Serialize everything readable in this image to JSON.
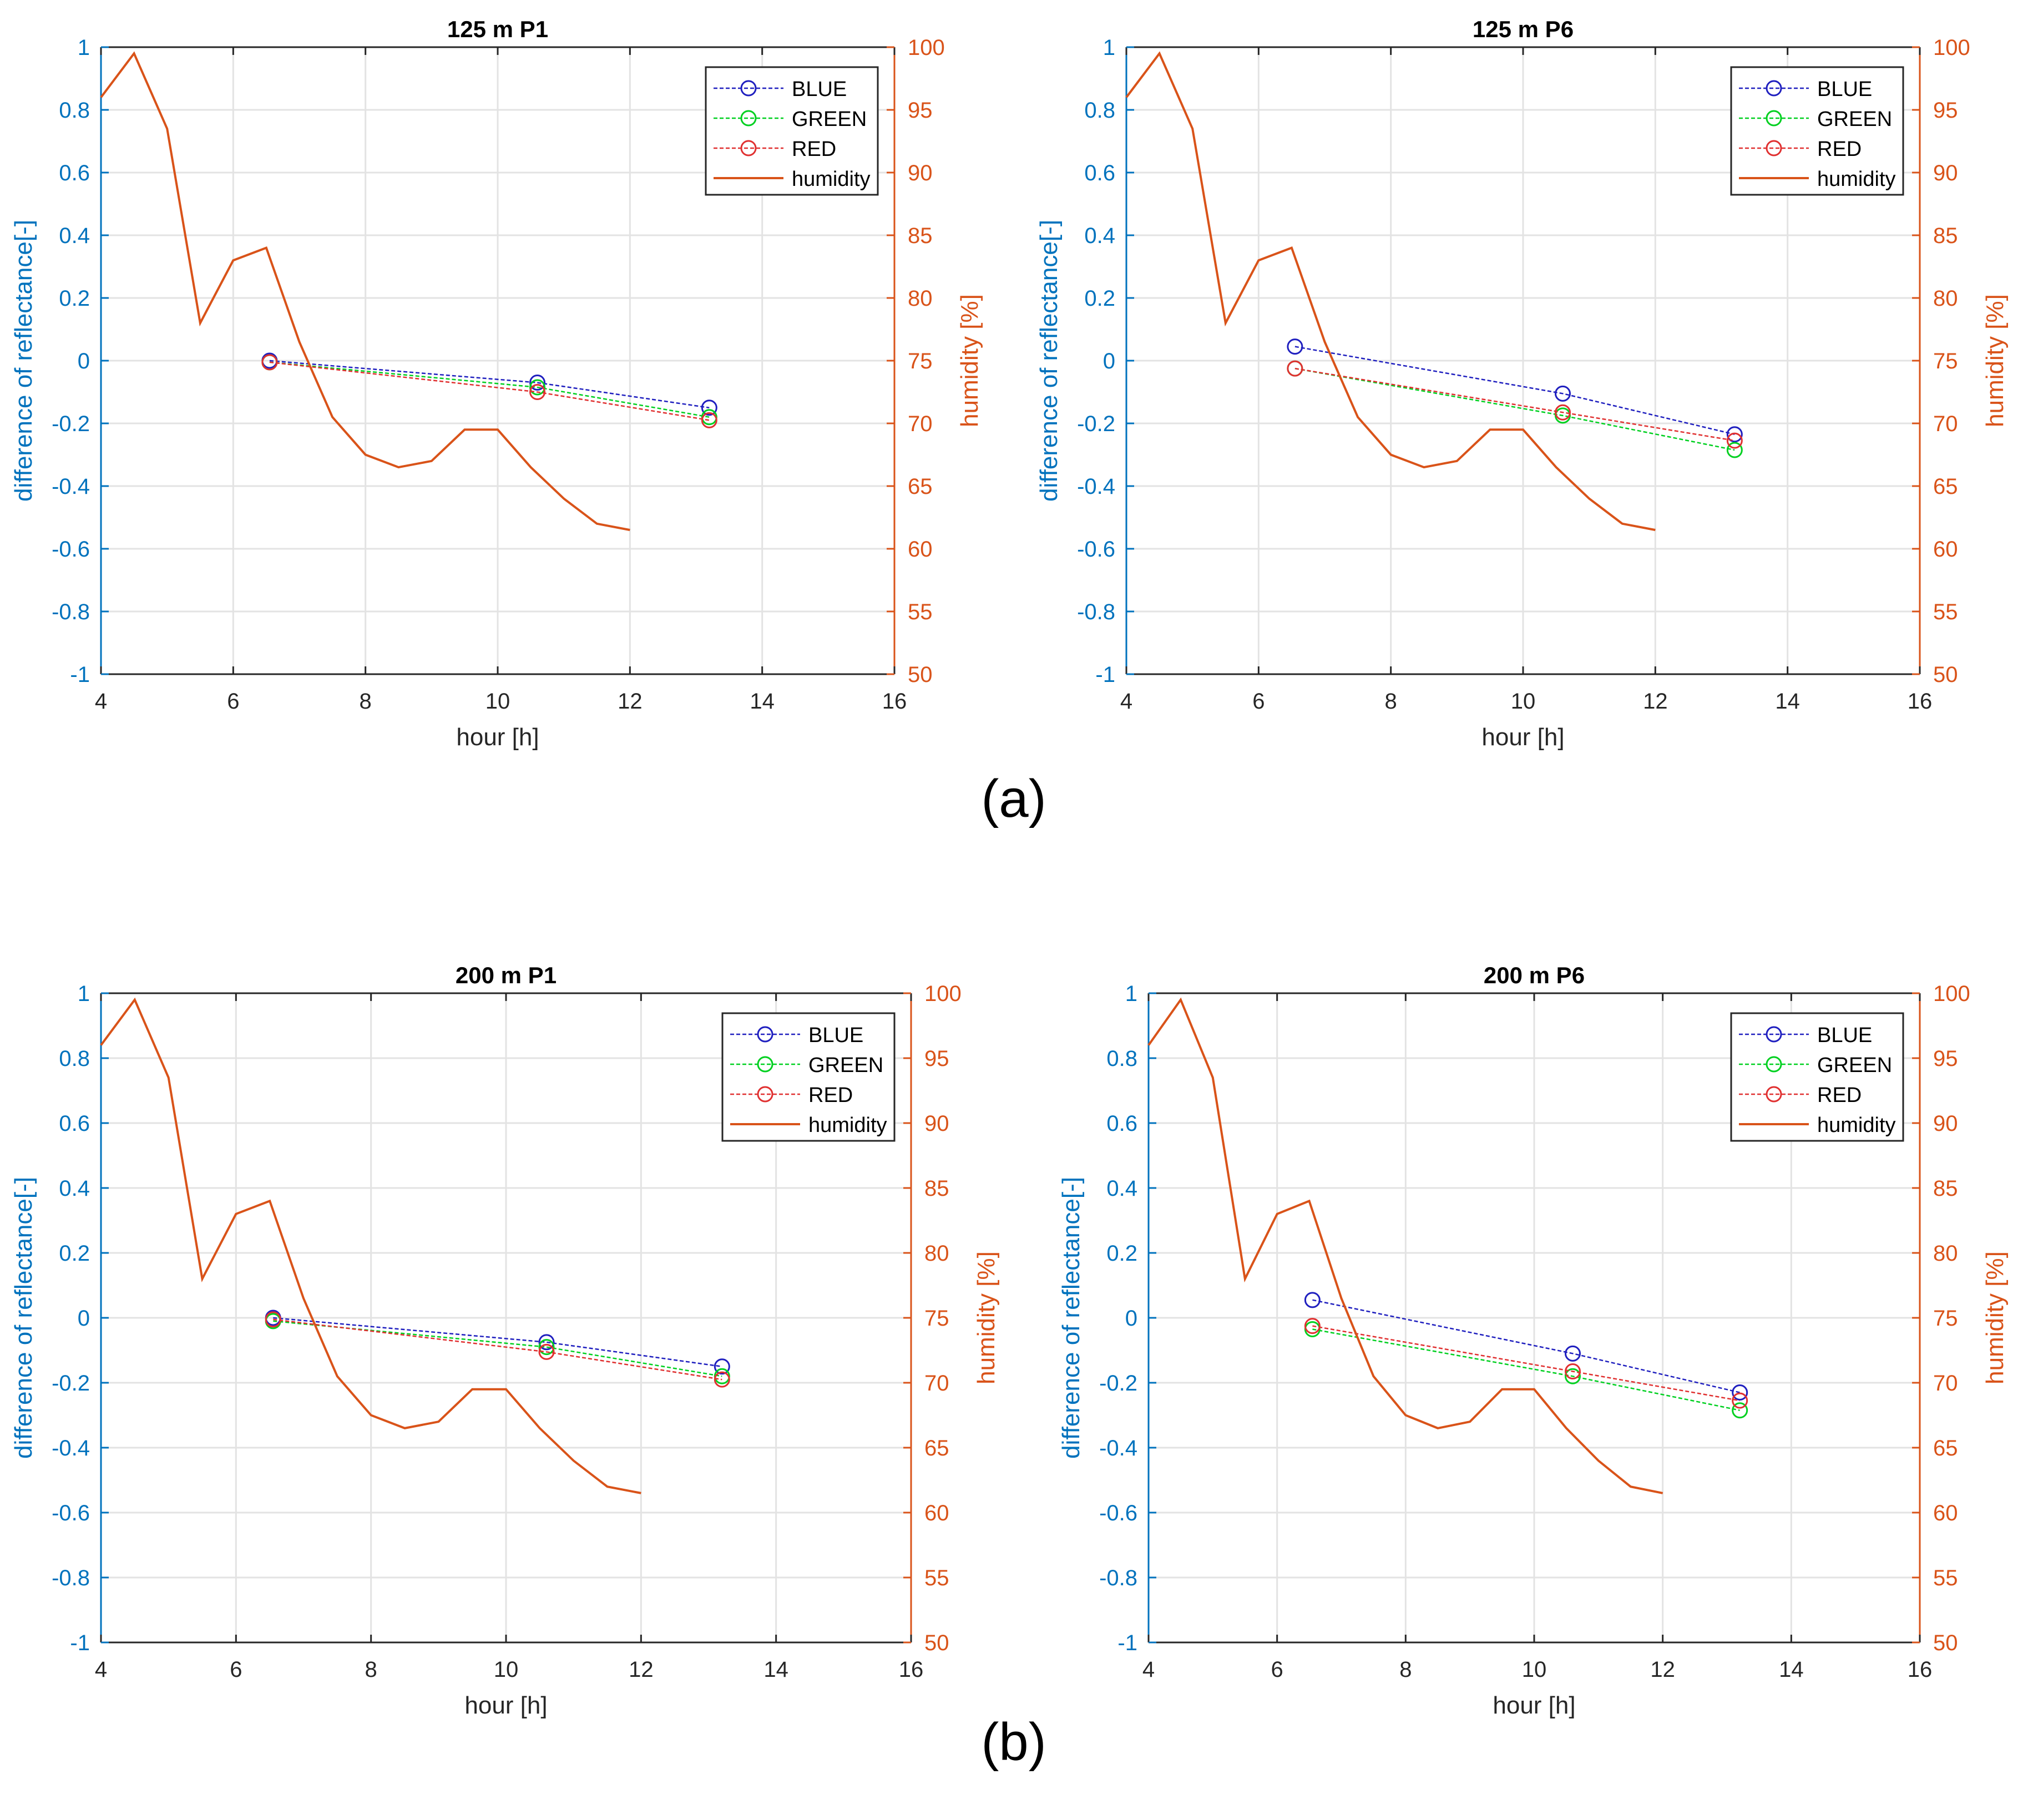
{
  "figure": {
    "panel_labels": [
      "(a)",
      "(b)"
    ]
  },
  "colors": {
    "left_axis": "#0072BD",
    "right_axis": "#D95319",
    "blue": "#1f1fbf",
    "green": "#00d020",
    "red": "#e03030",
    "humidity": "#D95319",
    "grid": "#e3e3e3",
    "axes": "#262626"
  },
  "chart_data": [
    {
      "type": "line",
      "title": "125 m  P1",
      "xlabel": "hour [h]",
      "ylabel": "difference of reflectance[-]",
      "y2label": "humidity [%]",
      "xlim": [
        4,
        16
      ],
      "ylim": [
        -1,
        1
      ],
      "y2lim": [
        50,
        100
      ],
      "xticks": [
        4,
        6,
        8,
        10,
        12,
        14,
        16
      ],
      "yticks": [
        -1,
        -0.8,
        -0.6,
        -0.4,
        -0.2,
        0,
        0.2,
        0.4,
        0.6,
        0.8,
        1
      ],
      "y2ticks": [
        50,
        55,
        60,
        65,
        70,
        75,
        80,
        85,
        90,
        95,
        100
      ],
      "grid": true,
      "legend": "top-right",
      "series": [
        {
          "name": "BLUE",
          "x": [
            6.55,
            10.6,
            13.2
          ],
          "y": [
            0.0,
            -0.07,
            -0.15
          ]
        },
        {
          "name": "GREEN",
          "x": [
            6.55,
            10.6,
            13.2
          ],
          "y": [
            -0.005,
            -0.085,
            -0.18
          ]
        },
        {
          "name": "RED",
          "x": [
            6.55,
            10.6,
            13.2
          ],
          "y": [
            -0.005,
            -0.1,
            -0.19
          ]
        },
        {
          "name": "humidity",
          "axis": "right",
          "x": [
            4,
            4.5,
            5,
            5.5,
            6,
            6.5,
            7,
            7.5,
            8,
            8.5,
            9,
            9.5,
            10,
            10.5,
            11,
            11.5,
            12
          ],
          "y": [
            96,
            99.5,
            93.5,
            78,
            83,
            84,
            76.5,
            70.5,
            67.5,
            66.5,
            67,
            69.5,
            69.5,
            66.5,
            64,
            62,
            61.5
          ]
        }
      ]
    },
    {
      "type": "line",
      "title": "125 m  P6",
      "xlabel": "hour [h]",
      "ylabel": "difference of reflectance[-]",
      "y2label": "humidity [%]",
      "xlim": [
        4,
        16
      ],
      "ylim": [
        -1,
        1
      ],
      "y2lim": [
        50,
        100
      ],
      "xticks": [
        4,
        6,
        8,
        10,
        12,
        14,
        16
      ],
      "yticks": [
        -1,
        -0.8,
        -0.6,
        -0.4,
        -0.2,
        0,
        0.2,
        0.4,
        0.6,
        0.8,
        1
      ],
      "y2ticks": [
        50,
        55,
        60,
        65,
        70,
        75,
        80,
        85,
        90,
        95,
        100
      ],
      "grid": true,
      "legend": "top-right",
      "series": [
        {
          "name": "BLUE",
          "x": [
            6.55,
            10.6,
            13.2
          ],
          "y": [
            0.045,
            -0.105,
            -0.235
          ]
        },
        {
          "name": "GREEN",
          "x": [
            6.55,
            10.6,
            13.2
          ],
          "y": [
            -0.025,
            -0.175,
            -0.285
          ]
        },
        {
          "name": "RED",
          "x": [
            6.55,
            10.6,
            13.2
          ],
          "y": [
            -0.025,
            -0.165,
            -0.255
          ]
        },
        {
          "name": "humidity",
          "axis": "right",
          "x": [
            4,
            4.5,
            5,
            5.5,
            6,
            6.5,
            7,
            7.5,
            8,
            8.5,
            9,
            9.5,
            10,
            10.5,
            11,
            11.5,
            12
          ],
          "y": [
            96,
            99.5,
            93.5,
            78,
            83,
            84,
            76.5,
            70.5,
            67.5,
            66.5,
            67,
            69.5,
            69.5,
            66.5,
            64,
            62,
            61.5
          ]
        }
      ]
    },
    {
      "type": "line",
      "title": "200 m  P1",
      "xlabel": "hour [h]",
      "ylabel": "difference of reflectance[-]",
      "y2label": "humidity [%]",
      "xlim": [
        4,
        16
      ],
      "ylim": [
        -1,
        1
      ],
      "y2lim": [
        50,
        100
      ],
      "xticks": [
        4,
        6,
        8,
        10,
        12,
        14,
        16
      ],
      "yticks": [
        -1,
        -0.8,
        -0.6,
        -0.4,
        -0.2,
        0,
        0.2,
        0.4,
        0.6,
        0.8,
        1
      ],
      "y2ticks": [
        50,
        55,
        60,
        65,
        70,
        75,
        80,
        85,
        90,
        95,
        100
      ],
      "grid": true,
      "legend": "top-right",
      "series": [
        {
          "name": "BLUE",
          "x": [
            6.55,
            10.6,
            13.2
          ],
          "y": [
            0.0,
            -0.075,
            -0.15
          ]
        },
        {
          "name": "GREEN",
          "x": [
            6.55,
            10.6,
            13.2
          ],
          "y": [
            -0.01,
            -0.09,
            -0.18
          ]
        },
        {
          "name": "RED",
          "x": [
            6.55,
            10.6,
            13.2
          ],
          "y": [
            -0.005,
            -0.105,
            -0.19
          ]
        },
        {
          "name": "humidity",
          "axis": "right",
          "x": [
            4,
            4.5,
            5,
            5.5,
            6,
            6.5,
            7,
            7.5,
            8,
            8.5,
            9,
            9.5,
            10,
            10.5,
            11,
            11.5,
            12
          ],
          "y": [
            96,
            99.5,
            93.5,
            78,
            83,
            84,
            76.5,
            70.5,
            67.5,
            66.5,
            67,
            69.5,
            69.5,
            66.5,
            64,
            62,
            61.5
          ]
        }
      ]
    },
    {
      "type": "line",
      "title": "200 m  P6",
      "xlabel": "hour [h]",
      "ylabel": "difference of reflectance[-]",
      "y2label": "humidity [%]",
      "xlim": [
        4,
        16
      ],
      "ylim": [
        -1,
        1
      ],
      "y2lim": [
        50,
        100
      ],
      "xticks": [
        4,
        6,
        8,
        10,
        12,
        14,
        16
      ],
      "yticks": [
        -1,
        -0.8,
        -0.6,
        -0.4,
        -0.2,
        0,
        0.2,
        0.4,
        0.6,
        0.8,
        1
      ],
      "y2ticks": [
        50,
        55,
        60,
        65,
        70,
        75,
        80,
        85,
        90,
        95,
        100
      ],
      "grid": true,
      "legend": "top-right",
      "series": [
        {
          "name": "BLUE",
          "x": [
            6.55,
            10.6,
            13.2
          ],
          "y": [
            0.055,
            -0.11,
            -0.23
          ]
        },
        {
          "name": "GREEN",
          "x": [
            6.55,
            10.6,
            13.2
          ],
          "y": [
            -0.035,
            -0.18,
            -0.285
          ]
        },
        {
          "name": "RED",
          "x": [
            6.55,
            10.6,
            13.2
          ],
          "y": [
            -0.025,
            -0.165,
            -0.255
          ]
        },
        {
          "name": "humidity",
          "axis": "right",
          "x": [
            4,
            4.5,
            5,
            5.5,
            6,
            6.5,
            7,
            7.5,
            8,
            8.5,
            9,
            9.5,
            10,
            10.5,
            11,
            11.5,
            12
          ],
          "y": [
            96,
            99.5,
            93.5,
            78,
            83,
            84,
            76.5,
            70.5,
            67.5,
            66.5,
            67,
            69.5,
            69.5,
            66.5,
            64,
            62,
            61.5
          ]
        }
      ]
    }
  ]
}
